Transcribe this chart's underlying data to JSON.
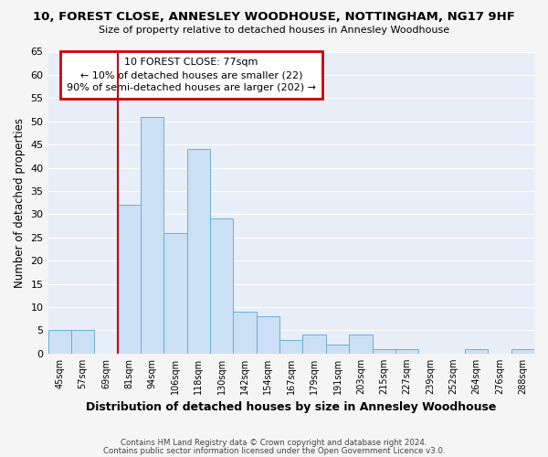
{
  "title1": "10, FOREST CLOSE, ANNESLEY WOODHOUSE, NOTTINGHAM, NG17 9HF",
  "title2": "Size of property relative to detached houses in Annesley Woodhouse",
  "xlabel": "Distribution of detached houses by size in Annesley Woodhouse",
  "ylabel": "Number of detached properties",
  "bin_labels": [
    "45sqm",
    "57sqm",
    "69sqm",
    "81sqm",
    "94sqm",
    "106sqm",
    "118sqm",
    "130sqm",
    "142sqm",
    "154sqm",
    "167sqm",
    "179sqm",
    "191sqm",
    "203sqm",
    "215sqm",
    "227sqm",
    "239sqm",
    "252sqm",
    "264sqm",
    "276sqm",
    "288sqm"
  ],
  "bar_values": [
    5,
    5,
    0,
    32,
    51,
    26,
    44,
    29,
    9,
    8,
    3,
    4,
    2,
    4,
    1,
    1,
    0,
    0,
    1,
    0,
    1
  ],
  "bar_color": "#cce0f5",
  "bar_edge_color": "#6aaed6",
  "vline_x_index": 3,
  "vline_color": "#cc0000",
  "ylim": [
    0,
    65
  ],
  "yticks": [
    0,
    5,
    10,
    15,
    20,
    25,
    30,
    35,
    40,
    45,
    50,
    55,
    60,
    65
  ],
  "annotation_title": "10 FOREST CLOSE: 77sqm",
  "annotation_line1": "← 10% of detached houses are smaller (22)",
  "annotation_line2": "90% of semi-detached houses are larger (202) →",
  "annotation_box_facecolor": "#ffffff",
  "annotation_box_edgecolor": "#cc0000",
  "fig_bg": "#f5f5f5",
  "ax_bg": "#e8eef8",
  "grid_color": "#ffffff",
  "footer1": "Contains HM Land Registry data © Crown copyright and database right 2024.",
  "footer2": "Contains public sector information licensed under the Open Government Licence v3.0."
}
